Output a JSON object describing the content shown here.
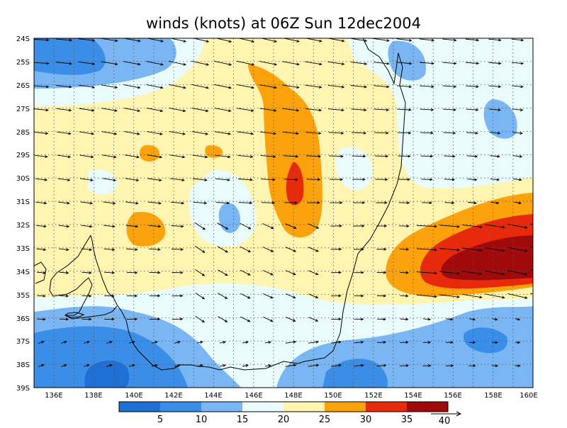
{
  "title": "winds (knots) at 06Z Sun 12dec2004",
  "map": {
    "lon_range": [
      135,
      160
    ],
    "lat_range": [
      -39,
      -24
    ],
    "x_ticks": [
      "136E",
      "138E",
      "140E",
      "142E",
      "144E",
      "146E",
      "148E",
      "150E",
      "152E",
      "154E",
      "156E",
      "158E",
      "160E"
    ],
    "y_ticks": [
      "24S",
      "25S",
      "26S",
      "27S",
      "28S",
      "29S",
      "30S",
      "31S",
      "32S",
      "33S",
      "34S",
      "35S",
      "36S",
      "37S",
      "38S",
      "39S"
    ],
    "grid": "dotted"
  },
  "colorbar": {
    "labels": [
      "5",
      "10",
      "15",
      "20",
      "25",
      "30",
      "35",
      "40"
    ],
    "colors": [
      "#1e6fd6",
      "#3a8ee8",
      "#79b6f3",
      "#e9fbfb",
      "#fff4b0",
      "#fca20c",
      "#e82a0c",
      "#a00a0a"
    ],
    "vector_unit_label": "40"
  },
  "colors": {
    "coast": "#000000",
    "vector": "#000000"
  }
}
